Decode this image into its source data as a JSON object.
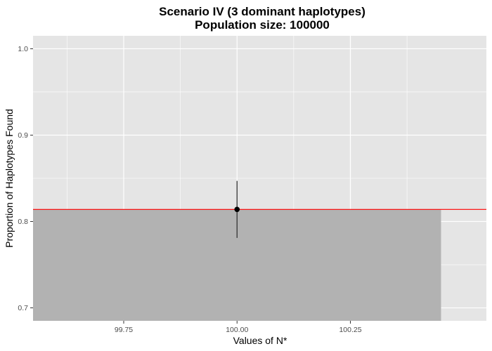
{
  "chart_data": {
    "type": "bar",
    "title": "Scenario IV (3 dominant haplotypes)",
    "subtitle": "Population size: 100000",
    "xlabel": "Values of N*",
    "ylabel": "Proportion of Haplotypes Found",
    "x_ticks": [
      "99.75",
      "100.00",
      "100.25"
    ],
    "x_tick_values": [
      99.75,
      100.0,
      100.25
    ],
    "y_ticks": [
      "0.7",
      "0.8",
      "0.9",
      "1.0"
    ],
    "y_tick_values": [
      0.7,
      0.8,
      0.9,
      1.0
    ],
    "xlim": [
      99.55,
      100.55
    ],
    "ylim": [
      0.685,
      1.015
    ],
    "bars": [
      {
        "x": 100.0,
        "value": 0.814,
        "width": 0.9
      }
    ],
    "points": [
      {
        "x": 100.0,
        "y": 0.814,
        "ymin": 0.781,
        "ymax": 0.847
      }
    ],
    "hline": {
      "y": 0.814,
      "color": "#ff0000"
    },
    "grid": true,
    "colors": {
      "panel": "#e5e5e5",
      "grid": "#ffffff",
      "bar": "#b2b2b2",
      "point": "#000000",
      "errorbar": "#333333"
    }
  }
}
